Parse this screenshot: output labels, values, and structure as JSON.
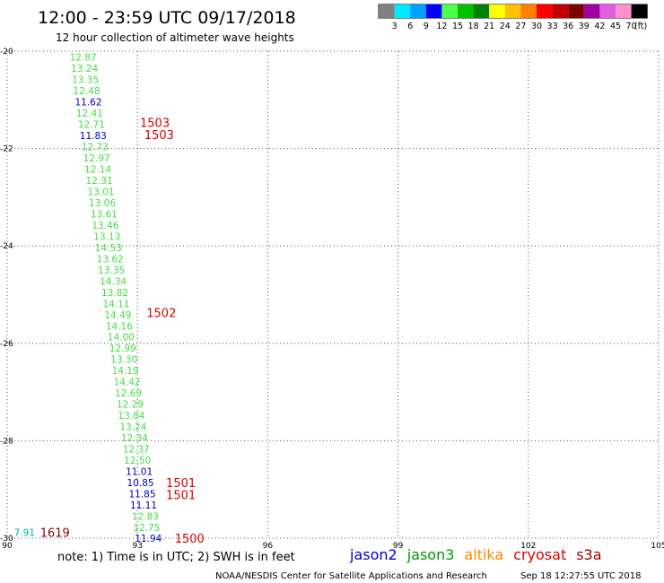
{
  "header": {
    "title": "12:00 - 23:59 UTC 09/17/2018",
    "subtitle": "12 hour collection of altimeter wave heights"
  },
  "legend": {
    "unit": "(ft)",
    "bins": [
      {
        "label": "3",
        "color": "#808080"
      },
      {
        "label": "6",
        "color": "#00e8ff"
      },
      {
        "label": "9",
        "color": "#00a0ff"
      },
      {
        "label": "12",
        "color": "#0000ff"
      },
      {
        "label": "15",
        "color": "#4cff4c"
      },
      {
        "label": "18",
        "color": "#00c000"
      },
      {
        "label": "21",
        "color": "#008000"
      },
      {
        "label": "24",
        "color": "#ffff00"
      },
      {
        "label": "27",
        "color": "#ffc000"
      },
      {
        "label": "30",
        "color": "#ff8000"
      },
      {
        "label": "33",
        "color": "#ff0000"
      },
      {
        "label": "36",
        "color": "#c00000"
      },
      {
        "label": "39",
        "color": "#800000"
      },
      {
        "label": "42",
        "color": "#a000a0"
      },
      {
        "label": "45",
        "color": "#e060e0"
      },
      {
        "label": "70",
        "color": "#ff90d0"
      },
      {
        "label": "",
        "color": "#000000"
      }
    ]
  },
  "map": {
    "lon_ticks": [
      "90",
      "93",
      "96",
      "99",
      "102",
      "105"
    ],
    "lat_ticks": [
      "-20",
      "-22",
      "-24",
      "-26",
      "-28",
      "-30"
    ],
    "lon_range": [
      90,
      105
    ],
    "lat_range": [
      -30,
      -20
    ],
    "grid": true
  },
  "colors": {
    "green": "#44dd44",
    "blue": "#0000c0",
    "cyan": "#00b0c0",
    "red": "#dd0000",
    "darkred": "#880000",
    "grid": "#555555"
  },
  "wave_heights": [
    {
      "v": "12.87",
      "lon": 91.75,
      "lat": -20.12,
      "c": "green"
    },
    {
      "v": "13.24",
      "lon": 91.78,
      "lat": -20.35,
      "c": "green"
    },
    {
      "v": "13.35",
      "lon": 91.8,
      "lat": -20.58,
      "c": "green"
    },
    {
      "v": "12.48",
      "lon": 91.83,
      "lat": -20.81,
      "c": "green"
    },
    {
      "v": "11.62",
      "lon": 91.87,
      "lat": -21.04,
      "c": "blue"
    },
    {
      "v": "12.41",
      "lon": 91.9,
      "lat": -21.27,
      "c": "green"
    },
    {
      "v": "12.71",
      "lon": 91.94,
      "lat": -21.5,
      "c": "green"
    },
    {
      "v": "11.83",
      "lon": 91.98,
      "lat": -21.73,
      "c": "blue"
    },
    {
      "v": "12.73",
      "lon": 92.02,
      "lat": -21.96,
      "c": "green"
    },
    {
      "v": "12.97",
      "lon": 92.06,
      "lat": -22.19,
      "c": "green"
    },
    {
      "v": "12.14",
      "lon": 92.09,
      "lat": -22.42,
      "c": "green"
    },
    {
      "v": "12.31",
      "lon": 92.12,
      "lat": -22.65,
      "c": "green"
    },
    {
      "v": "13.01",
      "lon": 92.16,
      "lat": -22.88,
      "c": "green"
    },
    {
      "v": "13.06",
      "lon": 92.19,
      "lat": -23.11,
      "c": "green"
    },
    {
      "v": "13.61",
      "lon": 92.23,
      "lat": -23.34,
      "c": "green"
    },
    {
      "v": "13.46",
      "lon": 92.26,
      "lat": -23.57,
      "c": "green"
    },
    {
      "v": "13.13",
      "lon": 92.3,
      "lat": -23.8,
      "c": "green"
    },
    {
      "v": "14.53",
      "lon": 92.33,
      "lat": -24.03,
      "c": "green"
    },
    {
      "v": "13.62",
      "lon": 92.37,
      "lat": -24.26,
      "c": "green"
    },
    {
      "v": "13.35",
      "lon": 92.4,
      "lat": -24.49,
      "c": "green"
    },
    {
      "v": "14.34",
      "lon": 92.44,
      "lat": -24.72,
      "c": "green"
    },
    {
      "v": "13.82",
      "lon": 92.48,
      "lat": -24.95,
      "c": "green"
    },
    {
      "v": "14.11",
      "lon": 92.51,
      "lat": -25.18,
      "c": "green"
    },
    {
      "v": "14.49",
      "lon": 92.55,
      "lat": -25.41,
      "c": "green"
    },
    {
      "v": "14.16",
      "lon": 92.58,
      "lat": -25.64,
      "c": "green"
    },
    {
      "v": "14.00",
      "lon": 92.62,
      "lat": -25.87,
      "c": "green"
    },
    {
      "v": "12.99",
      "lon": 92.66,
      "lat": -26.1,
      "c": "green"
    },
    {
      "v": "13.30",
      "lon": 92.69,
      "lat": -26.33,
      "c": "green"
    },
    {
      "v": "14.19",
      "lon": 92.72,
      "lat": -26.56,
      "c": "green"
    },
    {
      "v": "14.42",
      "lon": 92.76,
      "lat": -26.79,
      "c": "green"
    },
    {
      "v": "12.69",
      "lon": 92.79,
      "lat": -27.02,
      "c": "green"
    },
    {
      "v": "12.29",
      "lon": 92.83,
      "lat": -27.25,
      "c": "green"
    },
    {
      "v": "13.84",
      "lon": 92.86,
      "lat": -27.48,
      "c": "green"
    },
    {
      "v": "13.24",
      "lon": 92.9,
      "lat": -27.71,
      "c": "green"
    },
    {
      "v": "12.34",
      "lon": 92.93,
      "lat": -27.94,
      "c": "green"
    },
    {
      "v": "12.37",
      "lon": 92.97,
      "lat": -28.17,
      "c": "green"
    },
    {
      "v": "12.50",
      "lon": 93.0,
      "lat": -28.4,
      "c": "green"
    },
    {
      "v": "11.01",
      "lon": 93.04,
      "lat": -28.63,
      "c": "blue"
    },
    {
      "v": "10.85",
      "lon": 93.07,
      "lat": -28.86,
      "c": "blue"
    },
    {
      "v": "11.85",
      "lon": 93.11,
      "lat": -29.09,
      "c": "blue"
    },
    {
      "v": "11.11",
      "lon": 93.14,
      "lat": -29.32,
      "c": "blue"
    },
    {
      "v": "12.83",
      "lon": 93.18,
      "lat": -29.55,
      "c": "green"
    },
    {
      "v": "12.75",
      "lon": 93.21,
      "lat": -29.78,
      "c": "green"
    },
    {
      "v": "11.94",
      "lon": 93.25,
      "lat": -30.0,
      "c": "blue"
    },
    {
      "v": "7.91",
      "lon": 90.4,
      "lat": -29.88,
      "c": "cyan"
    }
  ],
  "pass_labels": [
    {
      "v": "1503",
      "lon": 93.4,
      "lat": -21.46,
      "c": "red"
    },
    {
      "v": "1503",
      "lon": 93.5,
      "lat": -21.71,
      "c": "red"
    },
    {
      "v": "1502",
      "lon": 93.55,
      "lat": -25.37,
      "c": "red"
    },
    {
      "v": "1501",
      "lon": 94.0,
      "lat": -28.86,
      "c": "red"
    },
    {
      "v": "1501",
      "lon": 94.0,
      "lat": -29.11,
      "c": "red"
    },
    {
      "v": "1500",
      "lon": 94.2,
      "lat": -30.0,
      "c": "red"
    },
    {
      "v": "1619",
      "lon": 91.1,
      "lat": -29.88,
      "c": "darkred"
    }
  ],
  "footer": {
    "note": "note: 1) Time is in UTC; 2) SWH is in feet",
    "satellites": [
      {
        "name": "jason2",
        "color": "#0000cc"
      },
      {
        "name": "jason3",
        "color": "#009900"
      },
      {
        "name": "altika",
        "color": "#ff8800"
      },
      {
        "name": "cryosat",
        "color": "#dd0000"
      },
      {
        "name": "s3a",
        "color": "#990000"
      }
    ],
    "credit": "NOAA/NESDIS Center for Satellite Applications and Research",
    "timestamp": "Sep 18 12:27:55 UTC 2018"
  }
}
